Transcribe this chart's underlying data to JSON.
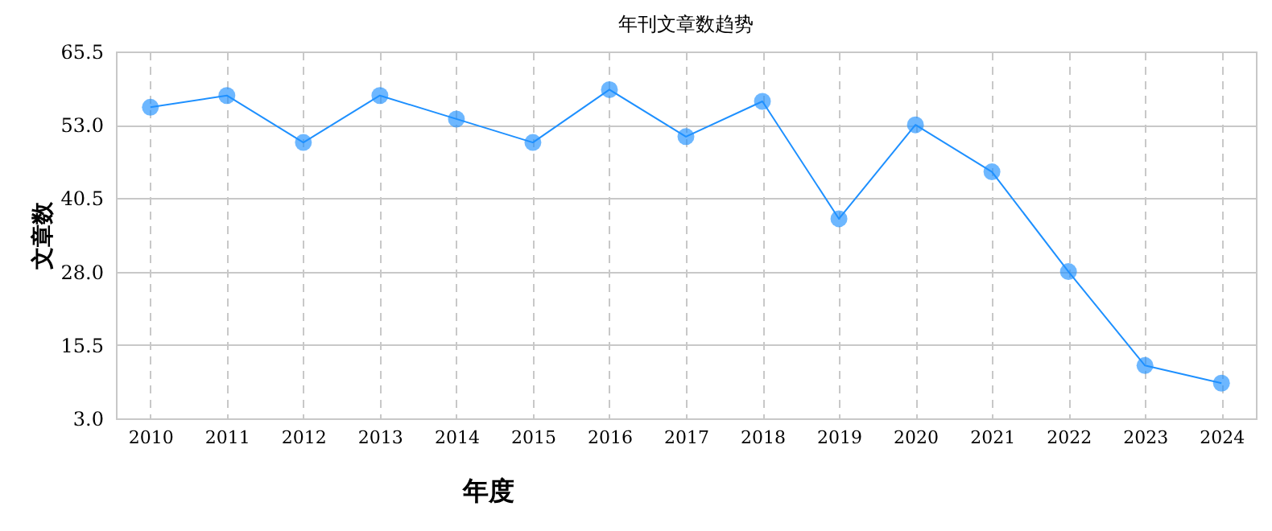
{
  "chart_data": {
    "type": "line",
    "title": "年刊文章数趋势",
    "xlabel": "年度",
    "ylabel": "文章数",
    "categories": [
      "2010",
      "2011",
      "2012",
      "2013",
      "2014",
      "2015",
      "2016",
      "2017",
      "2018",
      "2019",
      "2020",
      "2021",
      "2022",
      "2023",
      "2024"
    ],
    "series": [
      {
        "color": "#1e90ff",
        "values": [
          56,
          58,
          50,
          58,
          54,
          50,
          59,
          51,
          57,
          37,
          53,
          45,
          28,
          12,
          9
        ]
      }
    ],
    "ylim": [
      3,
      65.5
    ],
    "yticks": [
      {
        "value": 3,
        "label": "3.0"
      },
      {
        "value": 15.5,
        "label": "15.5"
      },
      {
        "value": 28,
        "label": "28.0"
      },
      {
        "value": 40.5,
        "label": "40.5"
      },
      {
        "value": 53,
        "label": "53.0"
      },
      {
        "value": 65.5,
        "label": "65.5"
      }
    ],
    "grid": true,
    "marker": "circle",
    "line_style": "solid"
  }
}
